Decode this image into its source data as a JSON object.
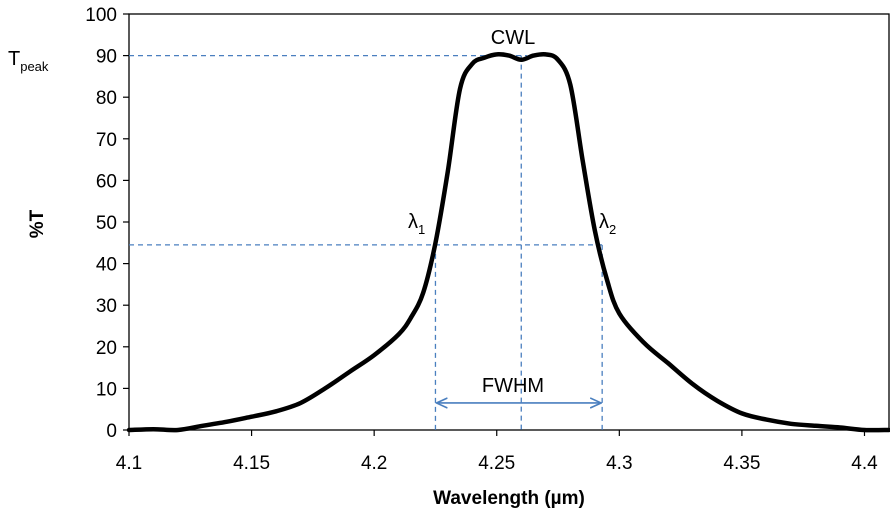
{
  "chart_data": {
    "type": "line",
    "title": "",
    "xlabel": "Wavelength (µm)",
    "ylabel": "%T",
    "xlim": [
      4.1,
      4.41
    ],
    "ylim": [
      0,
      100
    ],
    "x_ticks": [
      4.1,
      4.15,
      4.2,
      4.25,
      4.3,
      4.35,
      4.4
    ],
    "x_tick_labels": [
      "4.1",
      "4.15",
      "4.2",
      "4.25",
      "4.3",
      "4.35",
      "4.4"
    ],
    "y_ticks": [
      0,
      10,
      20,
      30,
      40,
      50,
      60,
      70,
      80,
      90,
      100
    ],
    "y_tick_labels": [
      "0",
      "10",
      "20",
      "30",
      "40",
      "50",
      "60",
      "70",
      "80",
      "90",
      "100"
    ],
    "grid": false,
    "legend": "none",
    "series": [
      {
        "color": "#000000",
        "x": [
          4.1,
          4.11,
          4.12,
          4.13,
          4.14,
          4.15,
          4.16,
          4.17,
          4.18,
          4.19,
          4.2,
          4.21,
          4.215,
          4.22,
          4.225,
          4.23,
          4.235,
          4.24,
          4.245,
          4.25,
          4.255,
          4.26,
          4.265,
          4.27,
          4.275,
          4.28,
          4.285,
          4.29,
          4.295,
          4.3,
          4.31,
          4.32,
          4.33,
          4.34,
          4.35,
          4.36,
          4.37,
          4.38,
          4.39,
          4.4,
          4.41
        ],
        "y": [
          0,
          0.2,
          0,
          1,
          2,
          3.2,
          4.5,
          6.5,
          10,
          14,
          18,
          23,
          27,
          33,
          45,
          62,
          82,
          88,
          89.5,
          90.3,
          90,
          89,
          90,
          90.3,
          89,
          83,
          65,
          48,
          36,
          28,
          21,
          16,
          11,
          7,
          4,
          2.5,
          1.5,
          1,
          0.6,
          0,
          0
        ]
      }
    ],
    "annotations": {
      "cwl": "CWL",
      "fwhm": "FWHM",
      "t_peak": "T",
      "t_peak_sub": "peak",
      "lambda1": "λ",
      "lambda1_sub": "1",
      "lambda2": "λ",
      "lambda2_sub": "2"
    },
    "marker_values": {
      "peak_transmission": 90,
      "half_max_transmission": 44.5,
      "center_wavelength": 4.26,
      "lambda1": 4.225,
      "lambda2": 4.293
    },
    "colors": {
      "curve": "#000000",
      "guide": "#4a7fbf",
      "fwhm_arrow": "#4a7fbf",
      "axis": "#000000"
    }
  }
}
